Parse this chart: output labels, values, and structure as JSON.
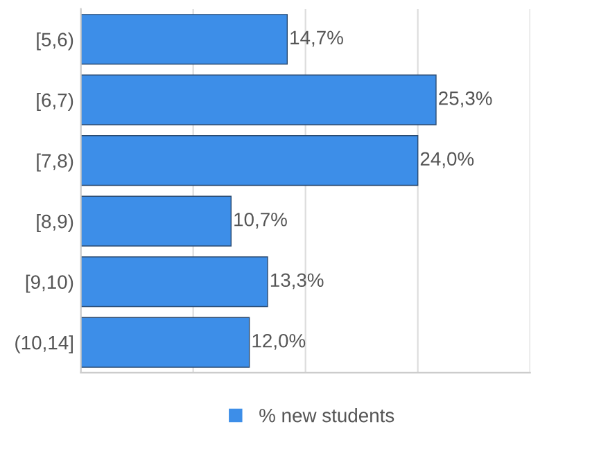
{
  "chart_data": {
    "type": "bar",
    "orientation": "horizontal",
    "categories": [
      "[5,6)",
      "[6,7)",
      "[7,8)",
      "[8,9)",
      "[9,10)",
      "(10,14]"
    ],
    "series": [
      {
        "name": "% new students",
        "color": "#3d8ee8",
        "values": [
          14.7,
          25.3,
          24.0,
          10.7,
          13.3,
          12.0
        ],
        "value_labels": [
          "14,7%",
          "25,3%",
          "24,0%",
          "10,7%",
          "13,3%",
          "12,0%"
        ]
      }
    ],
    "xlim": [
      0,
      32
    ],
    "xticks": [
      {
        "value": 0,
        "label": null
      },
      {
        "value": 8,
        "label": null
      },
      {
        "value": 16,
        "label": null
      },
      {
        "value": 24,
        "label": null
      },
      {
        "value": 32,
        "label": null
      }
    ],
    "tick_labels": "y",
    "grid": "x",
    "legend": "bottom"
  }
}
